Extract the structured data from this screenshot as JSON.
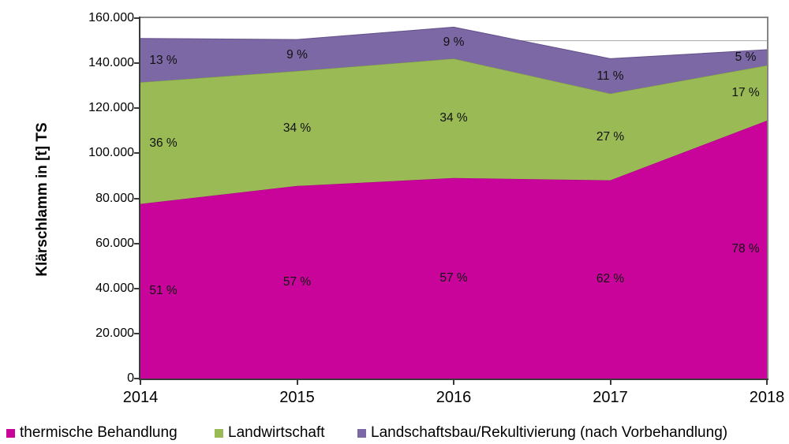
{
  "y_axis": {
    "title": "Klärschlamm in [t] TS",
    "tick_labels": [
      "160.000",
      "140.000",
      "120.000",
      "100.000",
      "80.000",
      "60.000",
      "40.000",
      "20.000",
      "0"
    ],
    "gridline_value": 150000,
    "gridline_color": "#b3b3b3"
  },
  "x_axis": {
    "tick_labels": [
      "2014",
      "2015",
      "2016",
      "2017",
      "2018"
    ]
  },
  "legend": [
    {
      "label": "thermische Behandlung",
      "color": "#c9049b"
    },
    {
      "label": "Landwirtschaft",
      "color": "#9aba56"
    },
    {
      "label": "Landschaftsbau/Rekultivierung (nach Vorbehandlung)",
      "color": "#7b68a4"
    }
  ],
  "chart_data": {
    "type": "area",
    "stacked": true,
    "x": [
      2014,
      2015,
      2016,
      2017,
      2018
    ],
    "series": [
      {
        "name": "thermische Behandlung",
        "values": [
          77500,
          85500,
          89000,
          88000,
          114500
        ],
        "percent_labels": [
          "51 %",
          "57 %",
          "57 %",
          "62 %",
          "78 %"
        ],
        "color": "#c9049b",
        "edge_color": "#a8007f"
      },
      {
        "name": "Landwirtschaft",
        "values": [
          54000,
          51000,
          53000,
          38500,
          24500
        ],
        "percent_labels": [
          "36 %",
          "34 %",
          "34 %",
          "27 %",
          "17 %"
        ],
        "color": "#9aba56",
        "edge_color": "#7fa03c"
      },
      {
        "name": "Landschaftsbau/Rekultivierung (nach Vorbehandlung)",
        "values": [
          19500,
          14000,
          14000,
          15500,
          7000
        ],
        "percent_labels": [
          "13 %",
          "9 %",
          "9 %",
          "11 %",
          "5 %"
        ],
        "color": "#7b68a4",
        "edge_color": "#63508a"
      }
    ],
    "title": "",
    "xlabel": "",
    "ylabel": "Klärschlamm in [t] TS",
    "ylim": [
      0,
      160000
    ],
    "grid": "single line at 150000",
    "legend_position": "bottom"
  }
}
